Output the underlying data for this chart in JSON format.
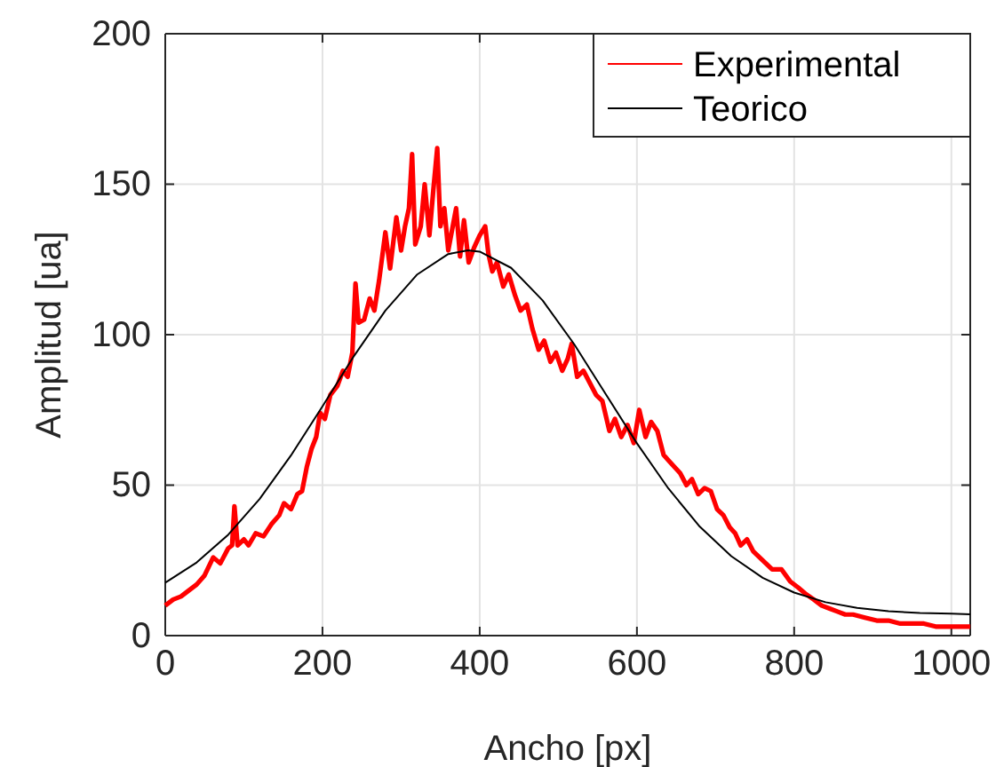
{
  "chart_data": {
    "type": "line",
    "xlabel": "Ancho [px]",
    "ylabel": "Amplitud [ua]",
    "xlim": [
      0,
      1024
    ],
    "ylim": [
      0,
      200
    ],
    "xticks": [
      0,
      200,
      400,
      600,
      800,
      1000
    ],
    "yticks": [
      0,
      50,
      100,
      150,
      200
    ],
    "grid": true,
    "legend": "top right",
    "marker": "none",
    "line_style": "solid",
    "series": [
      {
        "name": "Experimental",
        "color": "#ff0000",
        "x": [
          0,
          10,
          20,
          30,
          40,
          50,
          61,
          70,
          80,
          85,
          88,
          92,
          100,
          106,
          115,
          125,
          135,
          145,
          151,
          160,
          168,
          174,
          180,
          186,
          192,
          197,
          203,
          210,
          219,
          226,
          232,
          238,
          242,
          246,
          253,
          260,
          266,
          272,
          280,
          286,
          294,
          300,
          305,
          310,
          314,
          318,
          325,
          330,
          336,
          341,
          346,
          350,
          355,
          360,
          365,
          370,
          375,
          380,
          386,
          393,
          400,
          407,
          411,
          416,
          422,
          430,
          437,
          445,
          452,
          460,
          467,
          475,
          482,
          490,
          497,
          505,
          512,
          517,
          524,
          532,
          540,
          548,
          556,
          565,
          572,
          580,
          588,
          596,
          603,
          611,
          618,
          626,
          634,
          641,
          648,
          655,
          663,
          670,
          678,
          686,
          694,
          702,
          710,
          718,
          725,
          732,
          740,
          748,
          756,
          764,
          772,
          784,
          795,
          805,
          814,
          825,
          835,
          845,
          855,
          865,
          875,
          890,
          905,
          920,
          935,
          950,
          965,
          980,
          995,
          1010,
          1024
        ],
        "values": [
          10,
          12,
          13,
          15,
          17,
          20,
          26,
          24,
          29,
          30,
          43,
          30,
          32,
          30,
          34,
          33,
          37,
          40,
          44,
          42,
          47,
          48,
          56,
          62,
          66,
          74,
          72,
          80,
          83,
          88,
          86,
          94,
          117,
          104,
          105,
          112,
          108,
          118,
          134,
          122,
          139,
          128,
          136,
          142,
          160,
          130,
          136,
          150,
          133,
          148,
          162,
          136,
          142,
          128,
          135,
          142,
          126,
          138,
          124,
          129,
          133,
          136,
          127,
          121,
          124,
          116,
          120,
          113,
          108,
          110,
          102,
          95,
          98,
          91,
          94,
          88,
          92,
          97,
          86,
          88,
          84,
          80,
          78,
          68,
          72,
          66,
          70,
          64,
          75,
          66,
          71,
          68,
          60,
          58,
          56,
          54,
          50,
          52,
          47,
          49,
          48,
          42,
          40,
          36,
          34,
          30,
          32,
          28,
          26,
          24,
          22,
          22,
          18,
          16,
          14,
          12,
          10,
          9,
          8,
          7,
          7,
          6,
          5,
          5,
          4,
          4,
          4,
          3,
          3,
          3,
          3
        ]
      },
      {
        "name": "Teorico",
        "color": "#000000",
        "x": [
          0,
          40,
          80,
          120,
          160,
          200,
          240,
          280,
          320,
          360,
          385,
          400,
          440,
          480,
          520,
          560,
          600,
          640,
          680,
          720,
          760,
          800,
          840,
          880,
          920,
          960,
          1000,
          1024
        ],
        "values": [
          17.6,
          24.3,
          33.5,
          45.4,
          59.9,
          76.2,
          92.9,
          108,
          119.9,
          126.8,
          128,
          127.6,
          122.2,
          111.4,
          96.9,
          80.4,
          63.9,
          48.9,
          36.2,
          26.4,
          19.2,
          14.3,
          11.1,
          9.2,
          8.1,
          7.5,
          7.3,
          7.1
        ]
      }
    ]
  }
}
